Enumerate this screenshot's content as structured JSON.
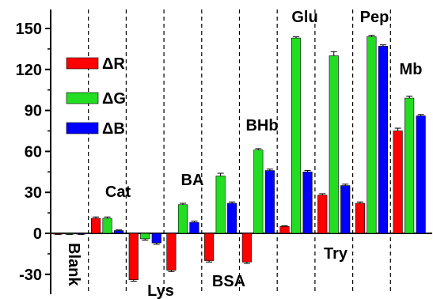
{
  "chart_data": {
    "type": "bar",
    "title": "",
    "xlabel": "",
    "ylabel": "",
    "ylim": [
      -45,
      155
    ],
    "yticks": [
      -30,
      0,
      30,
      60,
      90,
      120,
      150
    ],
    "grid": false,
    "legend_placement": "top-left",
    "categories": [
      "Blank",
      "Cat",
      "Lys",
      "BA",
      "BSA",
      "BHb",
      "Glu",
      "Try",
      "Pep",
      "Mb"
    ],
    "series": [
      {
        "name": "ΔR",
        "color": "#ff0000",
        "values": [
          -0.5,
          11,
          -34,
          -27,
          -20,
          -21,
          5,
          28,
          22,
          75
        ],
        "errors": [
          0.3,
          1,
          1,
          1,
          1,
          1,
          0.5,
          1,
          1,
          2
        ]
      },
      {
        "name": "ΔG",
        "color": "#22dd22",
        "values": [
          -0.5,
          11,
          -4,
          21,
          42,
          61,
          143,
          130,
          144,
          99
        ],
        "errors": [
          0.3,
          1,
          1,
          1,
          2,
          1,
          1,
          3,
          1,
          1.5
        ]
      },
      {
        "name": "ΔB",
        "color": "#0000ff",
        "values": [
          -0.5,
          2,
          -7,
          8,
          22,
          46,
          45,
          35,
          137,
          86
        ],
        "errors": [
          0.3,
          0.5,
          1,
          1,
          1,
          1,
          1,
          1,
          1,
          1
        ]
      }
    ]
  }
}
